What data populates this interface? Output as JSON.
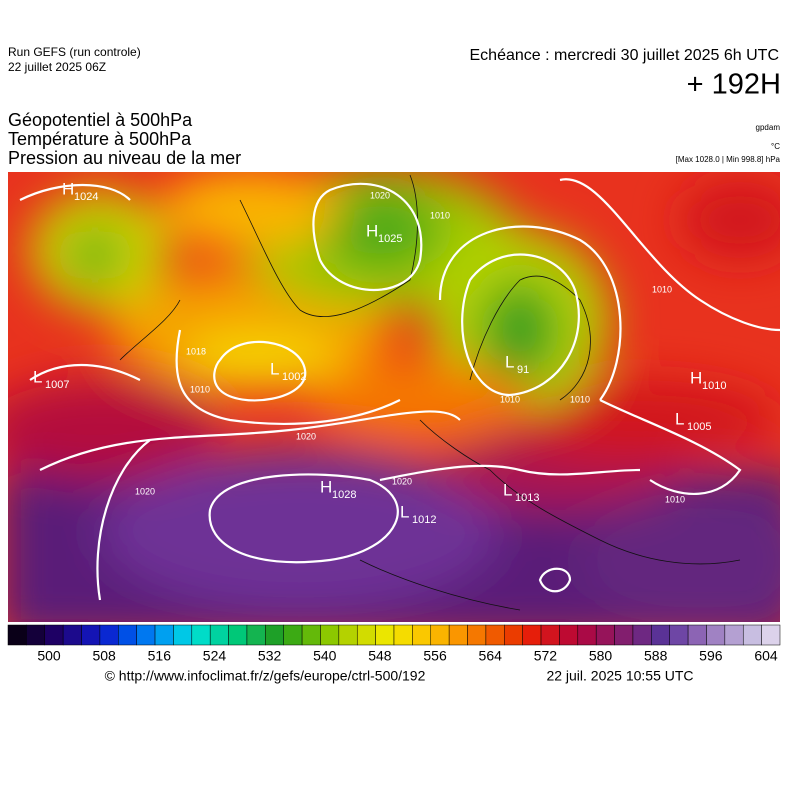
{
  "header": {
    "run": "Run GEFS (run controle)",
    "date": "22 juillet 2025 06Z",
    "echeance": "Echéance : mercredi 30 juillet 2025 6h UTC",
    "lead": "+ 192H"
  },
  "titles": [
    "Géopotentiel à 500hPa",
    "Température à 500hPa",
    "Pression au niveau de la mer"
  ],
  "units": [
    "gpdam",
    "°C",
    "[Max 1028.0 | Min 998.8] hPa"
  ],
  "centers": [
    {
      "letter": "H",
      "value": 1024
    },
    {
      "letter": "H",
      "value": 1025
    },
    {
      "letter": "L",
      "value": 1007
    },
    {
      "letter": "L",
      "value": 1002
    },
    {
      "letter": "L",
      "value": 91
    },
    {
      "letter": "H",
      "value": 1010
    },
    {
      "letter": "L",
      "value": 1005
    },
    {
      "letter": "H",
      "value": 1028
    },
    {
      "letter": "L",
      "value": 1013
    },
    {
      "letter": "L",
      "value": 1012
    }
  ],
  "isobar_labels": [
    "1020",
    "1010",
    "1010",
    "1018",
    "1010",
    "1020",
    "1020",
    "1020",
    "1010",
    "1010",
    "1010"
  ],
  "colorbar": {
    "colors": [
      "#0a0018",
      "#14003a",
      "#1e0064",
      "#1c0a8c",
      "#1414b4",
      "#0a28d2",
      "#0050e6",
      "#0078f0",
      "#00a0f0",
      "#00c8e6",
      "#00dcc8",
      "#00d2a0",
      "#00c878",
      "#14b450",
      "#1ea028",
      "#3caa14",
      "#64b90a",
      "#8cc800",
      "#b4d200",
      "#d2dc00",
      "#ebe600",
      "#f5dc00",
      "#fac800",
      "#fab400",
      "#fa9600",
      "#f57800",
      "#f05a00",
      "#eb3c00",
      "#e61e0a",
      "#d2141e",
      "#be0a32",
      "#aa0a46",
      "#96145a",
      "#821e6e",
      "#6e2882",
      "#5a3296",
      "#6e46a5",
      "#8c64b4",
      "#a082c3",
      "#b4a0d2",
      "#c8bee1",
      "#dcd2eb"
    ],
    "ticks": [
      500,
      508,
      516,
      524,
      532,
      540,
      548,
      556,
      564,
      572,
      580,
      588,
      596,
      604
    ]
  },
  "footer": {
    "url": "© http://www.infoclimat.fr/z/gefs/europe/ctrl-500/192",
    "time": "22 juil. 2025 10:55 UTC"
  }
}
